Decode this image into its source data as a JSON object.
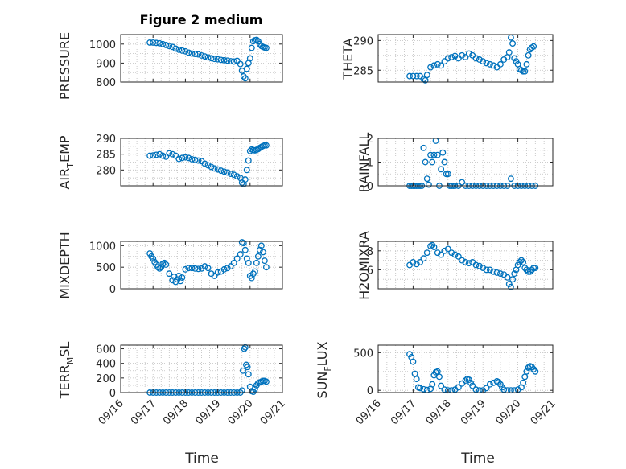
{
  "figure": {
    "title": "Figure 2 medium",
    "xlabel": "Time"
  },
  "chart_data": [
    {
      "type": "scatter",
      "ylabel": "PRESSURE",
      "ylim": [
        800,
        1050
      ],
      "yticks": [
        800,
        900,
        1000
      ],
      "yticklabels": [
        "800",
        "900",
        "1000"
      ],
      "xlim": [
        0,
        5
      ],
      "grid": true,
      "marker": "circle",
      "color": "#0072BD",
      "x": [
        0.9,
        1.0,
        1.1,
        1.2,
        1.3,
        1.4,
        1.5,
        1.6,
        1.7,
        1.8,
        1.9,
        2.0,
        2.1,
        2.2,
        2.3,
        2.4,
        2.5,
        2.6,
        2.7,
        2.8,
        2.9,
        3.0,
        3.1,
        3.2,
        3.3,
        3.4,
        3.5,
        3.6,
        3.7,
        3.75,
        3.8,
        3.85,
        3.9,
        3.95,
        4.0,
        4.05,
        4.1,
        4.15,
        4.2,
        4.25,
        4.3,
        4.35,
        4.4,
        4.45,
        4.5
      ],
      "y": [
        1008,
        1008,
        1006,
        1004,
        1000,
        995,
        990,
        985,
        976,
        970,
        966,
        962,
        955,
        950,
        948,
        946,
        940,
        935,
        930,
        926,
        922,
        920,
        917,
        915,
        913,
        910,
        908,
        912,
        895,
        860,
        830,
        820,
        870,
        900,
        925,
        980,
        1015,
        1020,
        1022,
        1015,
        1000,
        990,
        985,
        982,
        980
      ]
    },
    {
      "type": "scatter",
      "ylabel": "THETA",
      "ylim": [
        283,
        291
      ],
      "yticks": [
        285,
        290
      ],
      "yticklabels": [
        "285",
        "290"
      ],
      "xlim": [
        0,
        5
      ],
      "grid": true,
      "marker": "circle",
      "color": "#0072BD",
      "x": [
        0.9,
        1.0,
        1.1,
        1.2,
        1.3,
        1.35,
        1.4,
        1.5,
        1.6,
        1.7,
        1.8,
        1.9,
        2.0,
        2.1,
        2.2,
        2.3,
        2.4,
        2.5,
        2.6,
        2.7,
        2.8,
        2.9,
        3.0,
        3.1,
        3.2,
        3.3,
        3.4,
        3.5,
        3.6,
        3.7,
        3.75,
        3.8,
        3.85,
        3.9,
        3.95,
        4.0,
        4.05,
        4.1,
        4.15,
        4.2,
        4.25,
        4.3,
        4.35,
        4.4,
        4.45
      ],
      "y": [
        284,
        284,
        284,
        284,
        283.5,
        283.3,
        284.2,
        285.5,
        285.8,
        286,
        285.8,
        286.5,
        287,
        287.2,
        287.4,
        287,
        287.5,
        287.2,
        287.8,
        287.5,
        287,
        286.8,
        286.5,
        286.2,
        286,
        285.8,
        285.5,
        286,
        286.8,
        287.2,
        288,
        290.5,
        289.5,
        287,
        286.5,
        286,
        285.2,
        285,
        284.8,
        284.8,
        286,
        287.5,
        288.5,
        288.8,
        289
      ]
    },
    {
      "type": "scatter",
      "ylabel": "AIR_TEMP",
      "ylim": [
        275,
        290
      ],
      "yticks": [
        280,
        285,
        290
      ],
      "yticklabels": [
        "280",
        "285",
        "290"
      ],
      "xlim": [
        0,
        5
      ],
      "grid": true,
      "marker": "circle",
      "color": "#0072BD",
      "x": [
        0.9,
        1.0,
        1.1,
        1.2,
        1.3,
        1.4,
        1.5,
        1.6,
        1.7,
        1.8,
        1.9,
        2.0,
        2.1,
        2.2,
        2.3,
        2.4,
        2.5,
        2.6,
        2.7,
        2.8,
        2.9,
        3.0,
        3.1,
        3.2,
        3.3,
        3.4,
        3.5,
        3.6,
        3.7,
        3.75,
        3.8,
        3.85,
        3.9,
        3.95,
        4.0,
        4.05,
        4.1,
        4.15,
        4.2,
        4.25,
        4.3,
        4.35,
        4.4,
        4.45,
        4.5
      ],
      "y": [
        284.5,
        284.6,
        284.8,
        285,
        284.5,
        284.2,
        285.3,
        285,
        284.5,
        283.5,
        283.8,
        284,
        283.8,
        283.4,
        283.2,
        283,
        282.8,
        282,
        281.5,
        281,
        280.5,
        280.2,
        279.8,
        279.5,
        279.2,
        278.8,
        278.5,
        278,
        277.5,
        276,
        275.5,
        277,
        280,
        283,
        286,
        286.5,
        286.3,
        286.2,
        286.4,
        286.6,
        287,
        287.3,
        287.6,
        287.8,
        287.8
      ]
    },
    {
      "type": "scatter",
      "ylabel": "RAINFALL",
      "ylim": [
        0,
        2
      ],
      "yticks": [
        0,
        1,
        2
      ],
      "yticklabels": [
        "0",
        "1",
        "2"
      ],
      "xlim": [
        0,
        5
      ],
      "grid": true,
      "marker": "circle",
      "color": "#0072BD",
      "x": [
        0.9,
        0.95,
        1.0,
        1.05,
        1.1,
        1.15,
        1.2,
        1.25,
        1.3,
        1.35,
        1.4,
        1.45,
        1.5,
        1.55,
        1.6,
        1.65,
        1.7,
        1.75,
        1.8,
        1.85,
        1.9,
        1.95,
        2.0,
        2.05,
        2.1,
        2.15,
        2.2,
        2.3,
        2.4,
        2.5,
        2.6,
        2.7,
        2.8,
        2.9,
        3.0,
        3.1,
        3.2,
        3.3,
        3.4,
        3.5,
        3.6,
        3.7,
        3.8,
        3.9,
        4.0,
        4.1,
        4.2,
        4.3,
        4.4,
        4.5
      ],
      "y": [
        0,
        0,
        0,
        0,
        0,
        0,
        0,
        0,
        1.6,
        1.0,
        0.3,
        0.05,
        1.3,
        1.0,
        1.3,
        1.9,
        1.3,
        0,
        0.7,
        1.4,
        1.0,
        0.5,
        0.5,
        0,
        0,
        0,
        0,
        0,
        0.15,
        0,
        0,
        0,
        0,
        0,
        0,
        0,
        0,
        0,
        0,
        0,
        0,
        0,
        0.3,
        0,
        0,
        0,
        0,
        0,
        0,
        0
      ]
    },
    {
      "type": "scatter",
      "ylabel": "MIXDEPTH",
      "ylim": [
        0,
        1100
      ],
      "yticks": [
        0,
        500,
        1000
      ],
      "yticklabels": [
        "0",
        "500",
        "1000"
      ],
      "xlim": [
        0,
        5
      ],
      "grid": true,
      "marker": "circle",
      "color": "#0072BD",
      "x": [
        0.9,
        0.95,
        1.0,
        1.05,
        1.1,
        1.15,
        1.2,
        1.25,
        1.3,
        1.35,
        1.4,
        1.5,
        1.6,
        1.65,
        1.7,
        1.75,
        1.8,
        1.85,
        1.9,
        2.0,
        2.1,
        2.2,
        2.3,
        2.4,
        2.5,
        2.6,
        2.7,
        2.8,
        2.9,
        3.0,
        3.1,
        3.2,
        3.3,
        3.4,
        3.5,
        3.6,
        3.7,
        3.75,
        3.8,
        3.85,
        3.9,
        3.95,
        4.0,
        4.05,
        4.1,
        4.15,
        4.2,
        4.25,
        4.3,
        4.35,
        4.4,
        4.45,
        4.5
      ],
      "y": [
        820,
        750,
        700,
        620,
        560,
        500,
        470,
        500,
        580,
        600,
        560,
        350,
        200,
        280,
        160,
        220,
        300,
        180,
        260,
        450,
        480,
        480,
        470,
        460,
        470,
        520,
        480,
        350,
        300,
        380,
        400,
        450,
        480,
        520,
        600,
        700,
        800,
        1080,
        1060,
        900,
        700,
        600,
        300,
        250,
        350,
        400,
        600,
        750,
        900,
        1000,
        850,
        650,
        500
      ]
    },
    {
      "type": "scatter",
      "ylabel": "H2OMIXRA",
      "ylim": [
        4,
        9
      ],
      "yticks": [
        6,
        8
      ],
      "yticklabels": [
        "6",
        "8"
      ],
      "xlim": [
        0,
        5
      ],
      "grid": true,
      "marker": "circle",
      "color": "#0072BD",
      "x": [
        0.9,
        1.0,
        1.1,
        1.2,
        1.3,
        1.4,
        1.5,
        1.55,
        1.6,
        1.7,
        1.8,
        1.9,
        2.0,
        2.1,
        2.2,
        2.3,
        2.4,
        2.5,
        2.6,
        2.7,
        2.8,
        2.9,
        3.0,
        3.1,
        3.2,
        3.3,
        3.4,
        3.5,
        3.6,
        3.7,
        3.75,
        3.8,
        3.85,
        3.9,
        3.95,
        4.0,
        4.05,
        4.1,
        4.15,
        4.2,
        4.25,
        4.3,
        4.35,
        4.4,
        4.45,
        4.5
      ],
      "y": [
        6.5,
        6.8,
        6.6,
        6.8,
        7.2,
        7.8,
        8.5,
        8.6,
        8.4,
        7.8,
        7.6,
        8.0,
        8.2,
        7.8,
        7.6,
        7.4,
        7.0,
        6.8,
        6.7,
        6.8,
        6.5,
        6.4,
        6.2,
        6.0,
        6.0,
        5.8,
        5.7,
        5.6,
        5.5,
        5.2,
        4.5,
        4.2,
        5.0,
        5.6,
        6.0,
        6.5,
        6.8,
        7.0,
        6.8,
        6.2,
        6.0,
        5.8,
        5.8,
        6.0,
        6.2,
        6.2
      ]
    },
    {
      "type": "scatter",
      "ylabel": "TERR_MSL",
      "ylim": [
        0,
        650
      ],
      "yticks": [
        0,
        200,
        400,
        600
      ],
      "yticklabels": [
        "0",
        "200",
        "400",
        "600"
      ],
      "xlim": [
        0,
        5
      ],
      "grid": true,
      "marker": "circle",
      "color": "#0072BD",
      "xticks": [
        0,
        1,
        2,
        3,
        4,
        5
      ],
      "xticklabels": [
        "09/16",
        "09/17",
        "09/18",
        "09/19",
        "09/20",
        "09/21"
      ],
      "x": [
        0.9,
        1.0,
        1.1,
        1.2,
        1.3,
        1.4,
        1.5,
        1.6,
        1.7,
        1.8,
        1.9,
        2.0,
        2.1,
        2.2,
        2.3,
        2.4,
        2.5,
        2.6,
        2.7,
        2.8,
        2.9,
        3.0,
        3.1,
        3.2,
        3.3,
        3.4,
        3.5,
        3.6,
        3.7,
        3.75,
        3.78,
        3.82,
        3.85,
        3.88,
        3.92,
        3.95,
        4.0,
        4.05,
        4.1,
        4.15,
        4.2,
        4.25,
        4.3,
        4.35,
        4.4,
        4.45,
        4.5
      ],
      "y": [
        0,
        0,
        0,
        0,
        0,
        0,
        0,
        0,
        0,
        0,
        0,
        0,
        0,
        0,
        0,
        0,
        0,
        0,
        0,
        0,
        0,
        0,
        0,
        0,
        0,
        0,
        0,
        0,
        0,
        30,
        300,
        600,
        620,
        380,
        350,
        250,
        80,
        20,
        10,
        50,
        100,
        130,
        140,
        150,
        160,
        160,
        150
      ]
    },
    {
      "type": "scatter",
      "ylabel": "SUN_FLUX",
      "ylim": [
        -30,
        600
      ],
      "yticks": [
        0,
        500
      ],
      "yticklabels": [
        "0",
        "500"
      ],
      "xlim": [
        0,
        5
      ],
      "grid": true,
      "marker": "circle",
      "color": "#0072BD",
      "xticks": [
        0,
        1,
        2,
        3,
        4,
        5
      ],
      "xticklabels": [
        "09/16",
        "09/17",
        "09/18",
        "09/19",
        "09/20",
        "09/21"
      ],
      "x": [
        0.9,
        0.95,
        1.0,
        1.05,
        1.1,
        1.15,
        1.2,
        1.3,
        1.4,
        1.5,
        1.55,
        1.6,
        1.65,
        1.7,
        1.75,
        1.8,
        1.9,
        2.0,
        2.1,
        2.2,
        2.3,
        2.4,
        2.5,
        2.55,
        2.6,
        2.65,
        2.7,
        2.8,
        2.9,
        3.0,
        3.1,
        3.2,
        3.3,
        3.4,
        3.45,
        3.5,
        3.55,
        3.6,
        3.7,
        3.8,
        3.9,
        4.0,
        4.1,
        4.15,
        4.2,
        4.25,
        4.3,
        4.35,
        4.4,
        4.45,
        4.5
      ],
      "y": [
        480,
        440,
        380,
        220,
        150,
        40,
        30,
        15,
        5,
        20,
        80,
        200,
        240,
        250,
        180,
        60,
        10,
        0,
        0,
        10,
        40,
        90,
        130,
        150,
        140,
        100,
        60,
        10,
        0,
        0,
        30,
        80,
        100,
        120,
        110,
        80,
        40,
        10,
        0,
        0,
        0,
        10,
        40,
        100,
        180,
        250,
        300,
        320,
        310,
        280,
        250
      ]
    }
  ]
}
